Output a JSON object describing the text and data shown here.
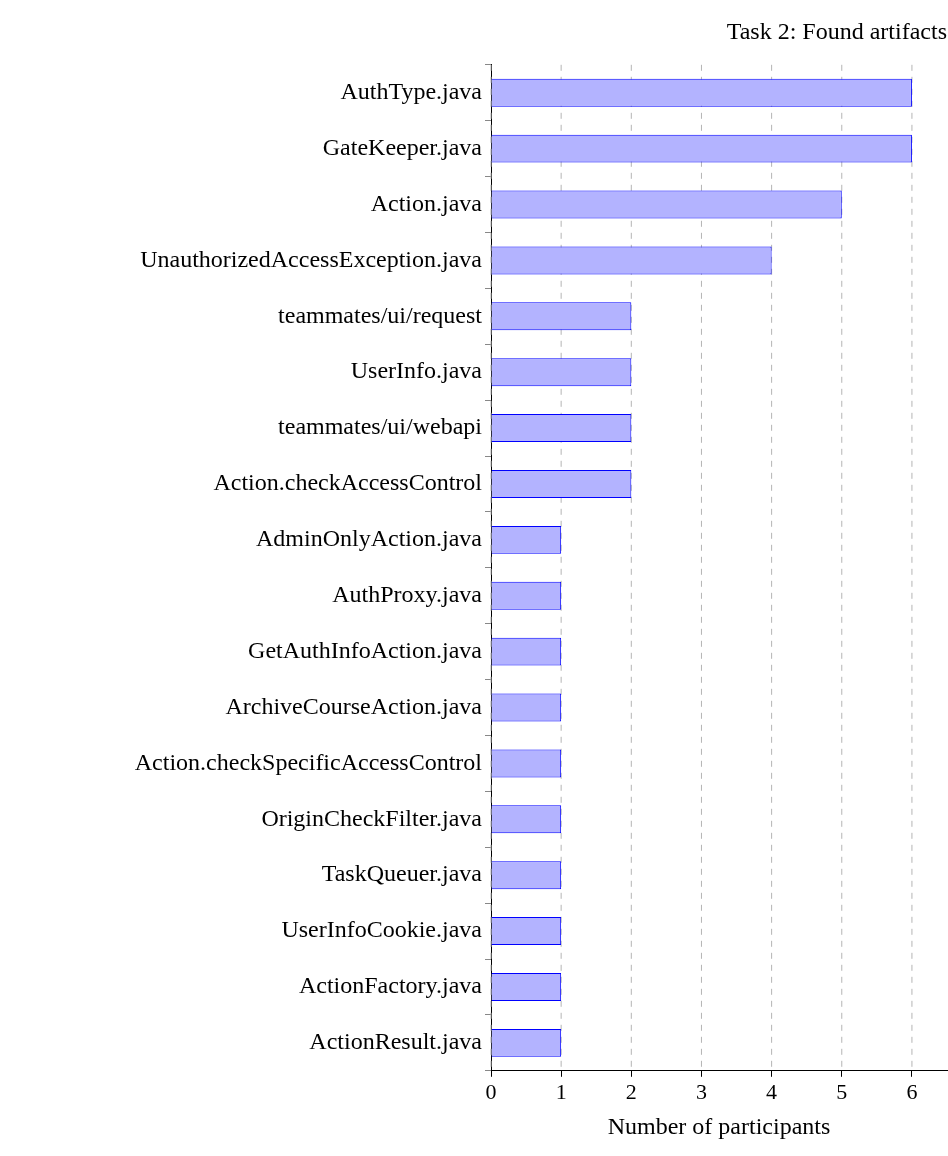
{
  "chart_data": {
    "type": "bar",
    "orientation": "horizontal",
    "title": "Task 2: Found artifacts",
    "xlabel": "Number of participants",
    "categories": [
      "AuthType.java",
      "GateKeeper.java",
      "Action.java",
      "UnauthorizedAccessException.java",
      "teammates/ui/request",
      "UserInfo.java",
      "teammates/ui/webapi",
      "Action.checkAccessControl",
      "AdminOnlyAction.java",
      "AuthProxy.java",
      "GetAuthInfoAction.java",
      "ArchiveCourseAction.java",
      "Action.checkSpecificAccessControl",
      "OriginCheckFilter.java",
      "TaskQueuer.java",
      "UserInfoCookie.java",
      "ActionFactory.java",
      "ActionResult.java"
    ],
    "values": [
      6,
      6,
      5,
      4,
      2,
      2,
      2,
      2,
      1,
      1,
      1,
      1,
      1,
      1,
      1,
      1,
      1,
      1
    ],
    "color": "#b3b3ff",
    "xlim": [
      0,
      6.5
    ],
    "xticks": [
      0,
      1,
      2,
      3,
      4,
      5,
      6
    ],
    "grid": "x",
    "legend": false
  }
}
